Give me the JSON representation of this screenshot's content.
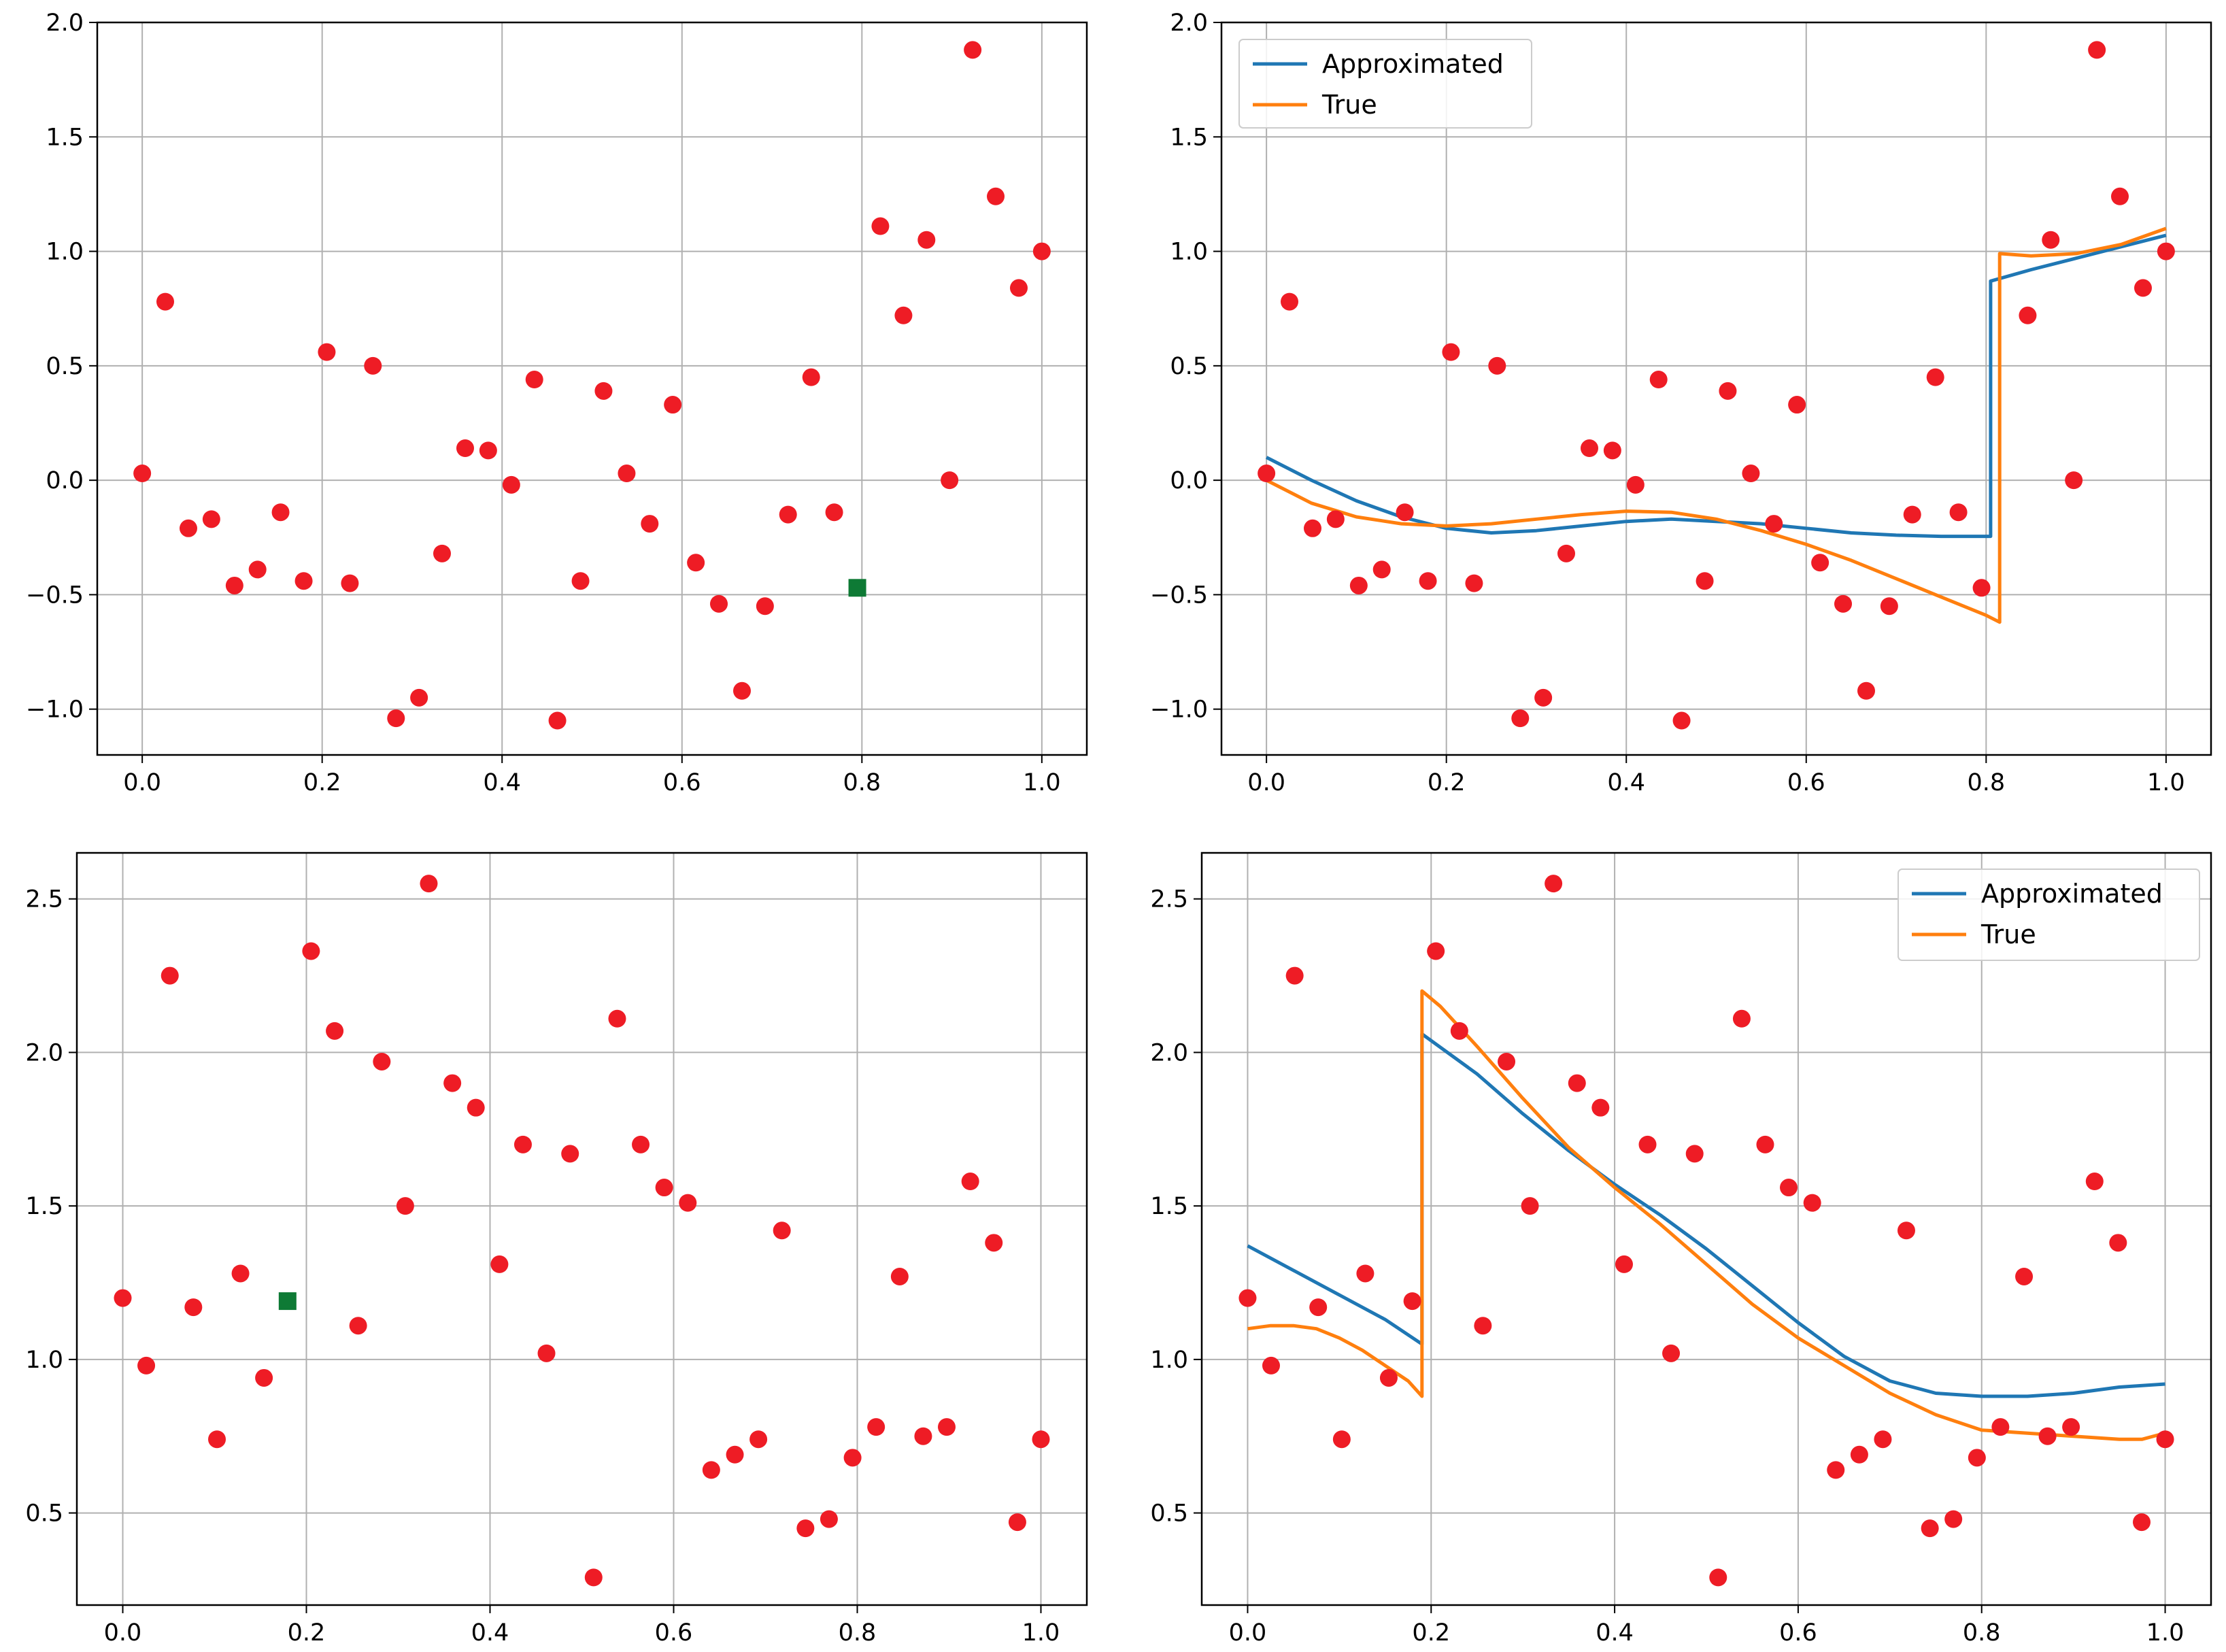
{
  "colors": {
    "points": "#ee1c25",
    "marker": "#0e7a35",
    "approx": "#1f77b4",
    "true": "#ff7f0e",
    "grid": "#b0b0b0",
    "axes": "#000000"
  },
  "chart_data": [
    {
      "type": "scatter",
      "title": "",
      "xlabel": "",
      "ylabel": "",
      "xlim": [
        -0.05,
        1.05
      ],
      "ylim": [
        -1.2,
        2.0
      ],
      "xticks": [
        0.0,
        0.2,
        0.4,
        0.6,
        0.8,
        1.0
      ],
      "xtick_labels": [
        "0.0",
        "0.2",
        "0.4",
        "0.6",
        "0.8",
        "1.0"
      ],
      "yticks": [
        -1.0,
        -0.5,
        0.0,
        0.5,
        1.0,
        1.5,
        2.0
      ],
      "ytick_labels": [
        "−1.0",
        "−0.5",
        "0.0",
        "0.5",
        "1.0",
        "1.5",
        "2.0"
      ],
      "grid": true,
      "points": {
        "x": [
          0.0,
          0.0256,
          0.0513,
          0.0769,
          0.1026,
          0.1282,
          0.1538,
          0.1795,
          0.2051,
          0.2308,
          0.2564,
          0.2821,
          0.3077,
          0.3333,
          0.359,
          0.3846,
          0.4103,
          0.4359,
          0.4615,
          0.4872,
          0.5128,
          0.5385,
          0.5641,
          0.5897,
          0.6154,
          0.641,
          0.6667,
          0.6923,
          0.7179,
          0.7436,
          0.7692,
          0.8205,
          0.8462,
          0.8718,
          0.8974,
          0.9231,
          0.9487,
          0.9744,
          1.0
        ],
        "y": [
          0.03,
          0.78,
          -0.21,
          -0.17,
          -0.46,
          -0.39,
          -0.14,
          -0.44,
          0.56,
          -0.45,
          0.5,
          -1.04,
          -0.95,
          -0.32,
          0.14,
          0.13,
          -0.02,
          0.44,
          -1.05,
          -0.44,
          0.39,
          0.03,
          -0.19,
          0.33,
          -0.36,
          -0.54,
          -0.92,
          -0.55,
          -0.15,
          0.45,
          -0.14,
          1.11,
          0.72,
          1.05,
          0.0,
          1.88,
          1.24,
          0.84,
          1.0
        ]
      },
      "highlight": {
        "x": 0.7949,
        "y": -0.47
      },
      "series": []
    },
    {
      "type": "line",
      "title": "",
      "xlabel": "",
      "ylabel": "",
      "xlim": [
        -0.05,
        1.05
      ],
      "ylim": [
        -1.2,
        2.0
      ],
      "xticks": [
        0.0,
        0.2,
        0.4,
        0.6,
        0.8,
        1.0
      ],
      "xtick_labels": [
        "0.0",
        "0.2",
        "0.4",
        "0.6",
        "0.8",
        "1.0"
      ],
      "yticks": [
        -1.0,
        -0.5,
        0.0,
        0.5,
        1.0,
        1.5,
        2.0
      ],
      "ytick_labels": [
        "−1.0",
        "−0.5",
        "0.0",
        "0.5",
        "1.0",
        "1.5",
        "2.0"
      ],
      "grid": true,
      "legend": {
        "location": "upper left",
        "entries": [
          "Approximated",
          "True"
        ]
      },
      "points": {
        "x": [
          0.0,
          0.0256,
          0.0513,
          0.0769,
          0.1026,
          0.1282,
          0.1538,
          0.1795,
          0.2051,
          0.2308,
          0.2564,
          0.2821,
          0.3077,
          0.3333,
          0.359,
          0.3846,
          0.4103,
          0.4359,
          0.4615,
          0.4872,
          0.5128,
          0.5385,
          0.5641,
          0.5897,
          0.6154,
          0.641,
          0.6667,
          0.6923,
          0.7179,
          0.7436,
          0.7692,
          0.7949,
          0.8462,
          0.8718,
          0.8974,
          0.9231,
          0.9487,
          0.9744,
          1.0
        ],
        "y": [
          0.03,
          0.78,
          -0.21,
          -0.17,
          -0.46,
          -0.39,
          -0.14,
          -0.44,
          0.56,
          -0.45,
          0.5,
          -1.04,
          -0.95,
          -0.32,
          0.14,
          0.13,
          -0.02,
          0.44,
          -1.05,
          -0.44,
          0.39,
          0.03,
          -0.19,
          0.33,
          -0.36,
          -0.54,
          -0.92,
          -0.55,
          -0.15,
          0.45,
          -0.14,
          -0.47,
          0.72,
          1.05,
          0.0,
          1.88,
          1.24,
          0.84,
          1.0
        ]
      },
      "series": [
        {
          "name": "Approximated",
          "x": [
            0.0,
            0.05,
            0.1,
            0.15,
            0.2,
            0.25,
            0.3,
            0.35,
            0.4,
            0.45,
            0.5,
            0.55,
            0.6,
            0.65,
            0.7,
            0.75,
            0.8,
            0.805,
            0.805,
            0.85,
            0.9,
            0.95,
            1.0
          ],
          "y": [
            0.1,
            0.0,
            -0.09,
            -0.16,
            -0.21,
            -0.23,
            -0.22,
            -0.2,
            -0.18,
            -0.17,
            -0.18,
            -0.19,
            -0.21,
            -0.23,
            -0.24,
            -0.245,
            -0.245,
            -0.245,
            0.87,
            0.92,
            0.97,
            1.02,
            1.07
          ]
        },
        {
          "name": "True",
          "x": [
            0.0,
            0.05,
            0.1,
            0.15,
            0.2,
            0.25,
            0.3,
            0.35,
            0.4,
            0.45,
            0.5,
            0.55,
            0.6,
            0.65,
            0.7,
            0.75,
            0.8,
            0.815,
            0.815,
            0.85,
            0.9,
            0.95,
            1.0
          ],
          "y": [
            0.0,
            -0.1,
            -0.16,
            -0.19,
            -0.2,
            -0.19,
            -0.17,
            -0.15,
            -0.135,
            -0.14,
            -0.17,
            -0.22,
            -0.28,
            -0.35,
            -0.43,
            -0.51,
            -0.59,
            -0.62,
            0.99,
            0.98,
            0.99,
            1.03,
            1.1
          ]
        }
      ]
    },
    {
      "type": "scatter",
      "title": "",
      "xlabel": "",
      "ylabel": "",
      "xlim": [
        -0.05,
        1.05
      ],
      "ylim": [
        0.2,
        2.65
      ],
      "xticks": [
        0.0,
        0.2,
        0.4,
        0.6,
        0.8,
        1.0
      ],
      "xtick_labels": [
        "0.0",
        "0.2",
        "0.4",
        "0.6",
        "0.8",
        "1.0"
      ],
      "yticks": [
        0.5,
        1.0,
        1.5,
        2.0,
        2.5
      ],
      "ytick_labels": [
        "0.5",
        "1.0",
        "1.5",
        "2.0",
        "2.5"
      ],
      "grid": true,
      "points": {
        "x": [
          0.0,
          0.0256,
          0.0513,
          0.0769,
          0.1026,
          0.1282,
          0.1538,
          0.2051,
          0.2308,
          0.2564,
          0.2821,
          0.3077,
          0.3333,
          0.359,
          0.3846,
          0.4103,
          0.4359,
          0.4615,
          0.4872,
          0.5128,
          0.5385,
          0.5641,
          0.5897,
          0.6154,
          0.641,
          0.6667,
          0.6923,
          0.7179,
          0.7436,
          0.7692,
          0.7949,
          0.8205,
          0.8462,
          0.8718,
          0.8974,
          0.9231,
          0.9487,
          0.9744,
          1.0
        ],
        "y": [
          1.2,
          0.98,
          2.25,
          1.17,
          0.74,
          1.28,
          0.94,
          2.33,
          2.07,
          1.11,
          1.97,
          1.5,
          2.55,
          1.9,
          1.82,
          1.31,
          1.7,
          1.02,
          1.67,
          0.29,
          2.11,
          1.7,
          1.56,
          1.51,
          0.64,
          0.69,
          0.74,
          1.42,
          0.45,
          0.48,
          0.68,
          0.78,
          1.27,
          0.75,
          0.78,
          1.58,
          1.38,
          0.47,
          0.74
        ]
      },
      "highlight": {
        "x": 0.1795,
        "y": 1.19
      },
      "series": []
    },
    {
      "type": "line",
      "title": "",
      "xlabel": "",
      "ylabel": "",
      "xlim": [
        -0.05,
        1.05
      ],
      "ylim": [
        0.2,
        2.65
      ],
      "xticks": [
        0.0,
        0.2,
        0.4,
        0.6,
        0.8,
        1.0
      ],
      "xtick_labels": [
        "0.0",
        "0.2",
        "0.4",
        "0.6",
        "0.8",
        "1.0"
      ],
      "yticks": [
        0.5,
        1.0,
        1.5,
        2.0,
        2.5
      ],
      "ytick_labels": [
        "0.5",
        "1.0",
        "1.5",
        "2.0",
        "2.5"
      ],
      "grid": true,
      "legend": {
        "location": "upper right",
        "entries": [
          "Approximated",
          "True"
        ]
      },
      "points": {
        "x": [
          0.0,
          0.0256,
          0.0513,
          0.0769,
          0.1026,
          0.1282,
          0.1538,
          0.1795,
          0.2051,
          0.2308,
          0.2564,
          0.2821,
          0.3077,
          0.3333,
          0.359,
          0.3846,
          0.4103,
          0.4359,
          0.4615,
          0.4872,
          0.5128,
          0.5385,
          0.5641,
          0.5897,
          0.6154,
          0.641,
          0.6667,
          0.6923,
          0.7179,
          0.7436,
          0.7692,
          0.7949,
          0.8205,
          0.8462,
          0.8718,
          0.8974,
          0.9231,
          0.9487,
          0.9744,
          1.0
        ],
        "y": [
          1.2,
          0.98,
          2.25,
          1.17,
          0.74,
          1.28,
          0.94,
          1.19,
          2.33,
          2.07,
          1.11,
          1.97,
          1.5,
          2.55,
          1.9,
          1.82,
          1.31,
          1.7,
          1.02,
          1.67,
          0.29,
          2.11,
          1.7,
          1.56,
          1.51,
          0.64,
          0.69,
          0.74,
          1.42,
          0.45,
          0.48,
          0.68,
          0.78,
          1.27,
          0.75,
          0.78,
          1.58,
          1.38,
          0.47,
          0.74
        ]
      },
      "series": [
        {
          "name": "Approximated",
          "x": [
            0.0,
            0.05,
            0.1,
            0.15,
            0.19,
            0.19,
            0.25,
            0.3,
            0.35,
            0.4,
            0.45,
            0.5,
            0.55,
            0.6,
            0.65,
            0.7,
            0.75,
            0.8,
            0.85,
            0.9,
            0.95,
            1.0
          ],
          "y": [
            1.37,
            1.29,
            1.21,
            1.13,
            1.05,
            2.06,
            1.93,
            1.8,
            1.68,
            1.57,
            1.47,
            1.36,
            1.24,
            1.12,
            1.01,
            0.93,
            0.89,
            0.88,
            0.88,
            0.89,
            0.91,
            0.92
          ]
        },
        {
          "name": "True",
          "x": [
            0.0,
            0.025,
            0.05,
            0.075,
            0.1,
            0.125,
            0.15,
            0.175,
            0.19,
            0.19,
            0.21,
            0.25,
            0.3,
            0.35,
            0.4,
            0.45,
            0.5,
            0.55,
            0.6,
            0.65,
            0.7,
            0.75,
            0.8,
            0.85,
            0.9,
            0.95,
            0.975,
            1.0
          ],
          "y": [
            1.1,
            1.11,
            1.11,
            1.1,
            1.07,
            1.03,
            0.98,
            0.93,
            0.88,
            2.2,
            2.15,
            2.02,
            1.85,
            1.69,
            1.56,
            1.44,
            1.31,
            1.18,
            1.07,
            0.98,
            0.89,
            0.82,
            0.77,
            0.76,
            0.75,
            0.74,
            0.74,
            0.76
          ]
        }
      ]
    }
  ]
}
